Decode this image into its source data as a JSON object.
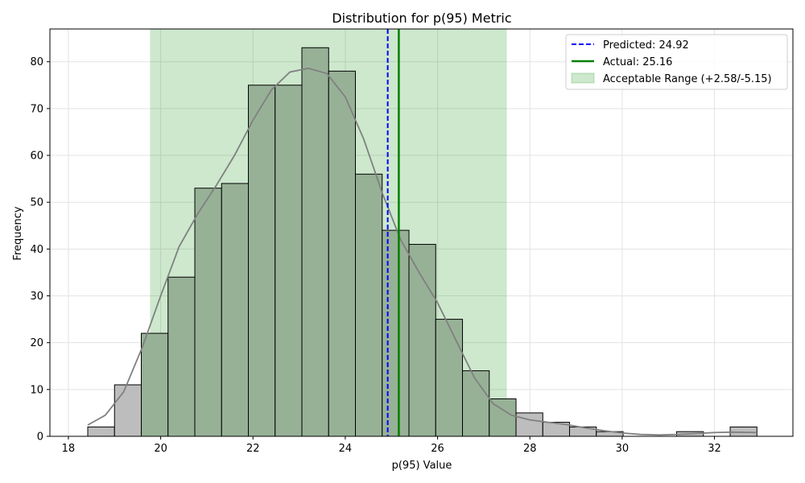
{
  "chart_data": {
    "type": "bar",
    "title": "Distribution for p(95) Metric",
    "xlabel": "p(95) Value",
    "ylabel": "Frequency",
    "xlim": [
      17.6,
      33.7
    ],
    "ylim": [
      0,
      87
    ],
    "xticks": [
      18,
      20,
      22,
      24,
      26,
      28,
      30,
      32
    ],
    "yticks": [
      0,
      10,
      20,
      30,
      40,
      50,
      60,
      70,
      80
    ],
    "grid": true,
    "legend_position": "top-right",
    "bins": {
      "start": 18.42,
      "width": 0.58,
      "counts": [
        2,
        11,
        22,
        34,
        53,
        54,
        75,
        75,
        83,
        78,
        56,
        44,
        41,
        25,
        14,
        8,
        5,
        3,
        2,
        1,
        0,
        0,
        1,
        0,
        2
      ]
    },
    "kde_curve": {
      "x": [
        18.42,
        18.8,
        19.2,
        19.6,
        20.0,
        20.4,
        20.8,
        21.2,
        21.6,
        22.0,
        22.4,
        22.8,
        23.2,
        23.6,
        24.0,
        24.4,
        24.8,
        25.2,
        25.6,
        26.0,
        26.4,
        26.8,
        27.2,
        27.6,
        28.0,
        28.4,
        28.8,
        29.2,
        29.6,
        30.0,
        30.4,
        30.8,
        31.2,
        31.6,
        32.0,
        32.4,
        32.9
      ],
      "y": [
        2.4,
        4.5,
        9.5,
        19,
        30,
        40.5,
        47.5,
        53.5,
        60,
        67.5,
        74,
        77.8,
        78.6,
        77.5,
        72.5,
        63.5,
        52,
        42,
        35,
        28.5,
        20.5,
        12.5,
        7,
        4.5,
        3.5,
        3,
        2.5,
        1.8,
        1.2,
        0.7,
        0.4,
        0.3,
        0.4,
        0.6,
        0.8,
        0.9,
        0.8
      ]
    },
    "predicted": {
      "label": "Predicted: 24.92",
      "value": 24.92,
      "color": "#0000ff"
    },
    "actual": {
      "label": "Actual: 25.16",
      "value": 25.16,
      "color": "#008000"
    },
    "acceptable_range": {
      "label": "Acceptable Range (+2.58/-5.15)",
      "low": 19.77,
      "high": 27.5,
      "color": "#2ca02c"
    },
    "colors": {
      "bar_outside": "#bdbdbd",
      "bar_inside": "#97b197",
      "bar_edge": "#000000",
      "kde": "#808080"
    }
  }
}
